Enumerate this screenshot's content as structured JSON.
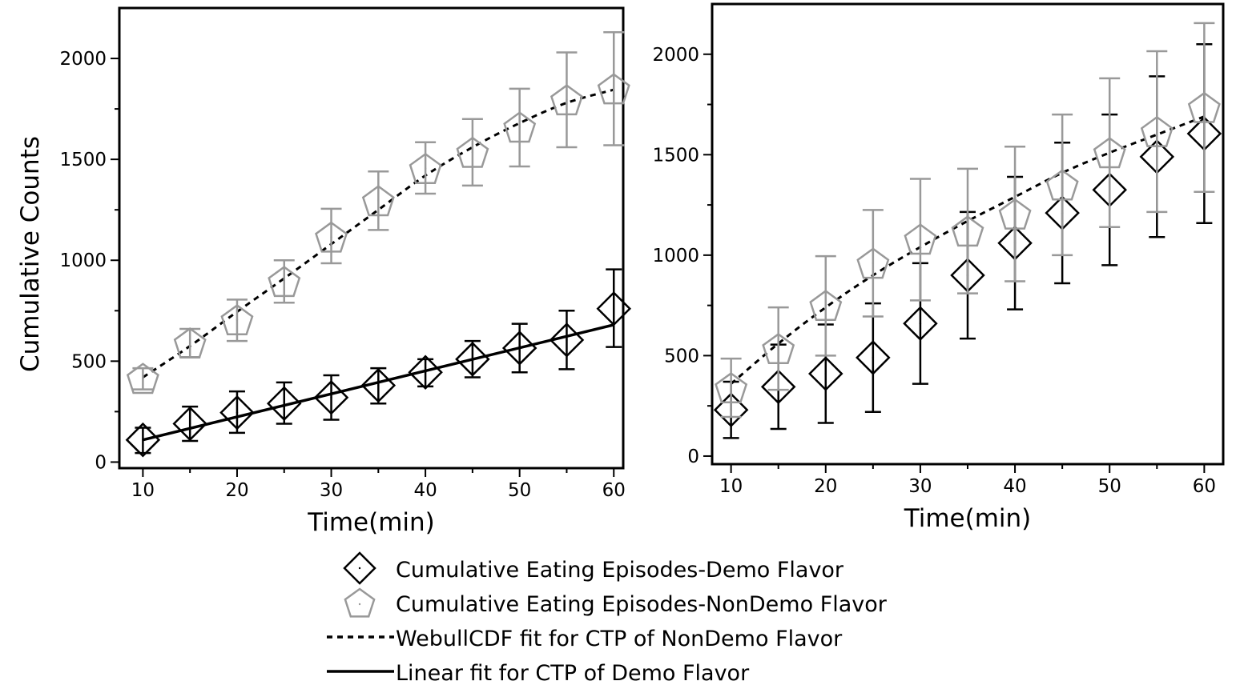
{
  "chart_data": [
    {
      "type": "scatter",
      "panel": "left",
      "xlabel": "Time(min)",
      "ylabel": "Cumulative Counts",
      "xlim": [
        7.5,
        61
      ],
      "ylim": [
        -30,
        2250
      ],
      "xticks": [
        "10",
        "20",
        "30",
        "40",
        "50",
        "60"
      ],
      "yticks": [
        "0",
        "500",
        "1000",
        "1500",
        "2000"
      ],
      "grid": false,
      "x": [
        10,
        15,
        20,
        25,
        30,
        35,
        40,
        45,
        50,
        55,
        60
      ],
      "series": [
        {
          "key": "demo",
          "marker": "diamond",
          "color": "#000000",
          "values": [
            110,
            190,
            245,
            290,
            320,
            380,
            445,
            510,
            565,
            605,
            760
          ],
          "err_low": [
            65,
            85,
            100,
            100,
            110,
            90,
            70,
            90,
            120,
            145,
            190
          ],
          "err_high": [
            60,
            85,
            105,
            105,
            110,
            85,
            65,
            90,
            120,
            145,
            195
          ]
        },
        {
          "key": "nondemo",
          "marker": "pentagon",
          "color": "#999999",
          "values": [
            415,
            590,
            705,
            895,
            1115,
            1295,
            1455,
            1535,
            1660,
            1795,
            1850
          ],
          "err_low": [
            55,
            70,
            105,
            105,
            130,
            145,
            125,
            165,
            195,
            235,
            280
          ],
          "err_high": [
            50,
            70,
            100,
            105,
            140,
            145,
            130,
            165,
            190,
            235,
            280
          ]
        }
      ],
      "fits": [
        {
          "key": "weibull",
          "style": "dashed",
          "color": "#000000",
          "x": [
            10,
            15,
            20,
            25,
            30,
            35,
            40,
            45,
            50,
            55,
            60
          ],
          "y": [
            420,
            575,
            745,
            910,
            1080,
            1250,
            1420,
            1560,
            1680,
            1780,
            1845
          ]
        },
        {
          "key": "linear",
          "style": "solid",
          "color": "#000000",
          "x": [
            10,
            60
          ],
          "y": [
            110,
            680
          ]
        }
      ]
    },
    {
      "type": "scatter",
      "panel": "right",
      "xlabel": "Time(min)",
      "ylabel": "",
      "xlim": [
        8,
        62
      ],
      "ylim": [
        -40,
        2250
      ],
      "xticks": [
        "10",
        "20",
        "30",
        "40",
        "50",
        "60"
      ],
      "yticks": [
        "0",
        "500",
        "1000",
        "1500",
        "2000"
      ],
      "grid": false,
      "x": [
        10,
        15,
        20,
        25,
        30,
        35,
        40,
        45,
        50,
        55,
        60
      ],
      "series": [
        {
          "key": "demo",
          "marker": "diamond",
          "color": "#000000",
          "values": [
            230,
            345,
            410,
            490,
            660,
            900,
            1060,
            1210,
            1325,
            1490,
            1605
          ],
          "err_low": [
            140,
            210,
            245,
            270,
            300,
            315,
            330,
            350,
            375,
            400,
            445
          ],
          "err_high": [
            140,
            210,
            245,
            270,
            300,
            315,
            330,
            350,
            375,
            400,
            445
          ]
        },
        {
          "key": "nondemo",
          "marker": "pentagon",
          "color": "#999999",
          "values": [
            340,
            535,
            750,
            960,
            1080,
            1120,
            1205,
            1350,
            1510,
            1615,
            1735
          ],
          "err_low": [
            145,
            205,
            250,
            265,
            305,
            310,
            335,
            350,
            370,
            400,
            420
          ],
          "err_high": [
            145,
            205,
            245,
            265,
            300,
            310,
            335,
            350,
            370,
            400,
            420
          ]
        }
      ],
      "fits": [
        {
          "key": "weibull",
          "style": "dashed",
          "color": "#000000",
          "x": [
            10,
            15,
            20,
            25,
            30,
            35,
            40,
            45,
            50,
            55,
            60
          ],
          "y": [
            360,
            560,
            740,
            900,
            1040,
            1170,
            1290,
            1410,
            1510,
            1600,
            1690
          ]
        }
      ]
    }
  ],
  "legend": {
    "placement": "bottom",
    "items": [
      {
        "key": "demo",
        "label": "Cumulative Eating Episodes-Demo Flavor",
        "symbol": "diamond",
        "color": "#000000"
      },
      {
        "key": "nondemo",
        "label": "Cumulative Eating Episodes-NonDemo Flavor",
        "symbol": "pentagon",
        "color": "#999999"
      },
      {
        "key": "weibull",
        "label": "WebullCDF fit for CTP of NonDemo Flavor",
        "symbol": "dashed-line",
        "color": "#000000"
      },
      {
        "key": "linear",
        "label": "Linear fit for CTP of Demo Flavor",
        "symbol": "solid-line",
        "color": "#000000"
      }
    ]
  }
}
